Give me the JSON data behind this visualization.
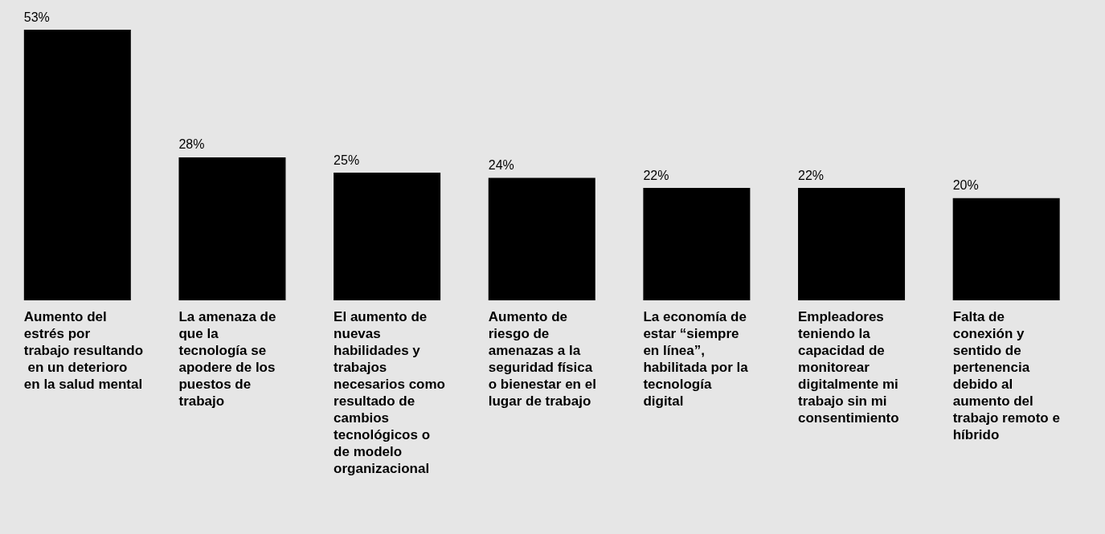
{
  "chart_data": {
    "type": "bar",
    "categories": [
      "Aumento del estrés por trabajo resultando en un deterioro en la salud mental",
      "La amenaza de que la tecnología se apodere de los puestos de trabajo",
      "El aumento de nuevas habilidades y trabajos necesarios como resultado de cambios tecnológicos o de modelo organizacional",
      "Aumento de riesgo de amenazas a la seguridad física o bienestar en el lugar de trabajo",
      "La economía de estar “siempre en línea”, habilitada por la tecnología digital",
      "Empleadores teniendo la capacidad de monitorear digitalmente mi trabajo sin mi consentimiento",
      "Falta de conexión y sentido de pertenencia debido al aumento del trabajo remoto e híbrido"
    ],
    "values": [
      53,
      28,
      25,
      24,
      22,
      22,
      20
    ],
    "value_labels": [
      "53%",
      "28%",
      "25%",
      "24%",
      "22%",
      "22%",
      "20%"
    ],
    "color": "#000000"
  }
}
